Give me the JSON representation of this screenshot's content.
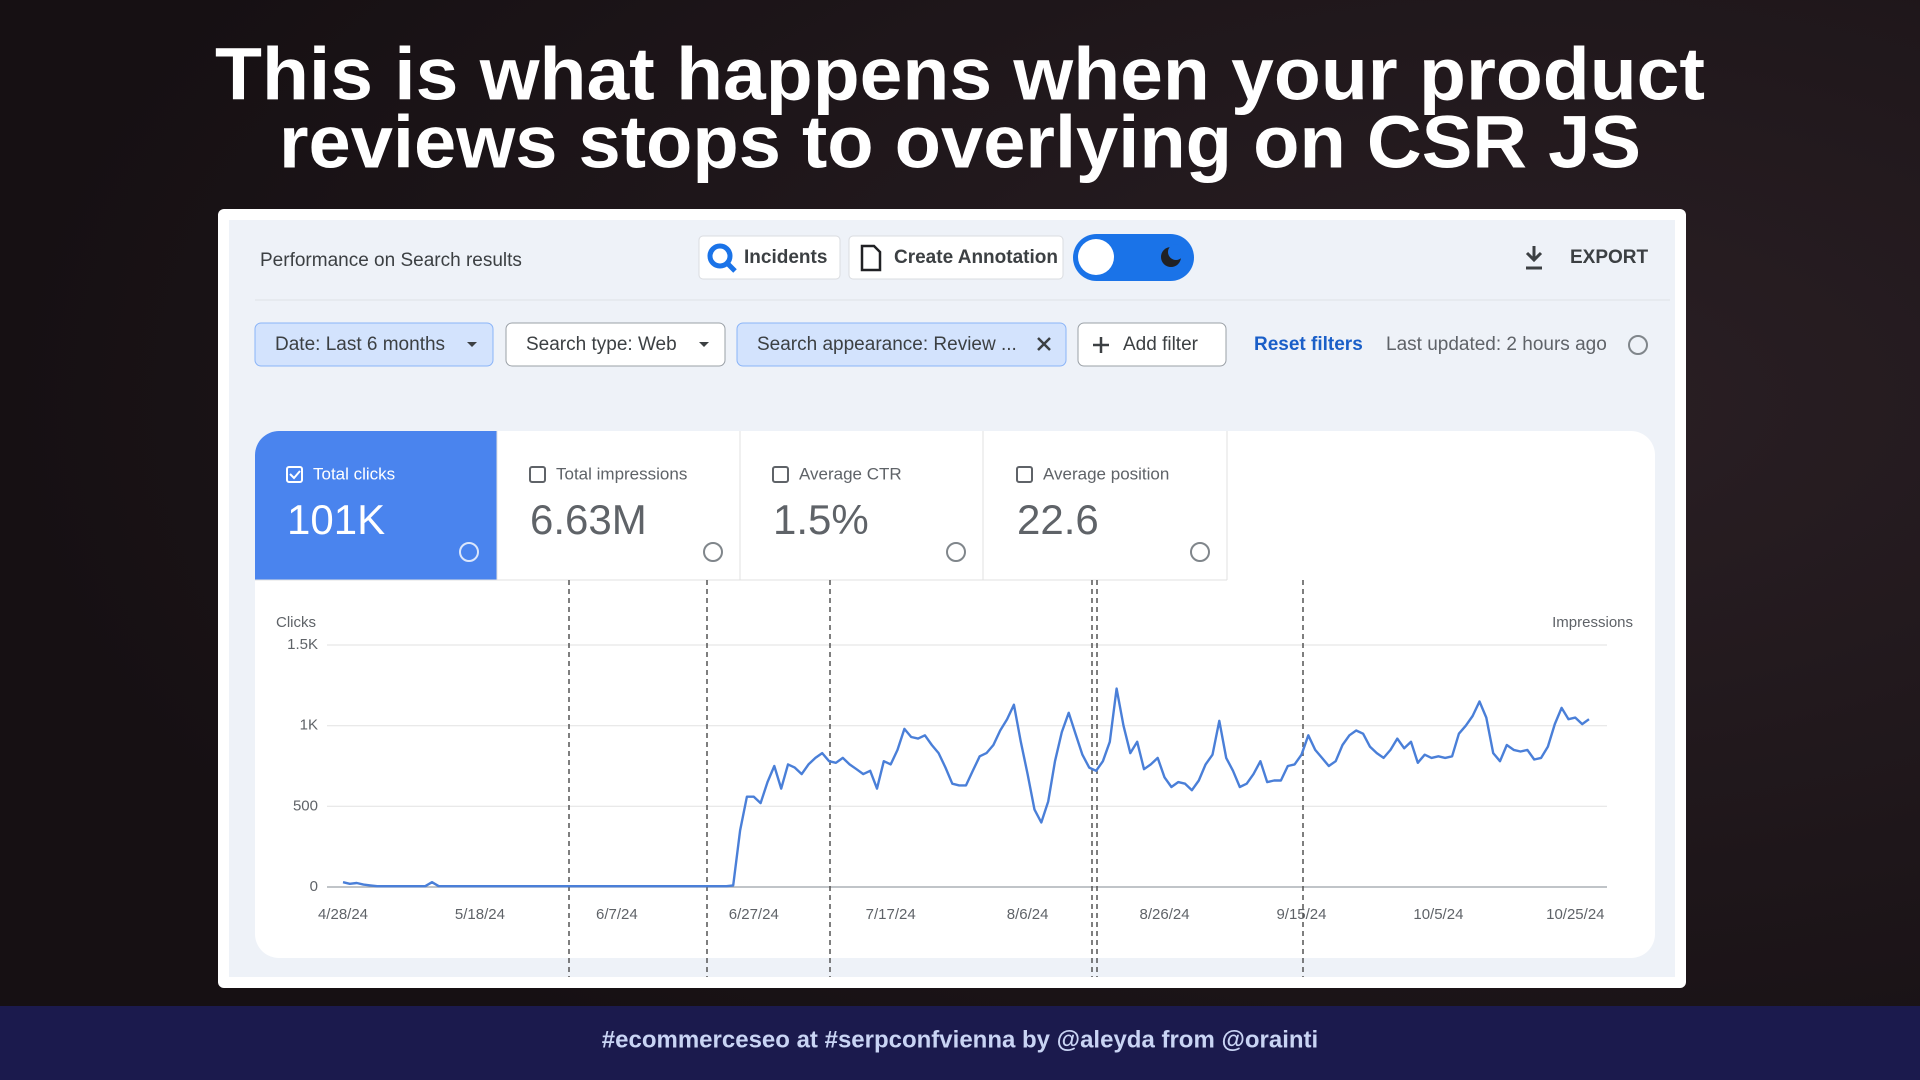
{
  "title_lines": [
    "This is what happens when your product",
    "reviews stops to overlying on CSR JS"
  ],
  "footer": "#ecommerceseo at #serpconfvienna by @aleyda from @orainti",
  "panel": {
    "heading": "Performance on Search results",
    "buttons": [
      "Incidents",
      "Create Annotation"
    ],
    "export": "EXPORT"
  },
  "filters": {
    "chips": [
      "Date: Last 6 months",
      "Search type: Web",
      "Search appearance: Review ...",
      "Add filter"
    ],
    "reset": "Reset filters",
    "updated": "Last updated: 2 hours ago"
  },
  "metrics": [
    {
      "label": "Total clicks",
      "value": "101K"
    },
    {
      "label": "Total impressions",
      "value": "6.63M"
    },
    {
      "label": "Average CTR",
      "value": "1.5%"
    },
    {
      "label": "Average position",
      "value": "22.6"
    }
  ],
  "chart_data": {
    "type": "line",
    "y_label": "Clicks",
    "y2_label": "Impressions",
    "color": "#4a7fd8",
    "ylim": [
      0,
      1500
    ],
    "yticks": [
      0,
      500,
      {
        "value": 1000,
        "label": "1K"
      },
      {
        "value": 1500,
        "label": "1.5K"
      }
    ],
    "grid": true,
    "categories": [
      "4/28/24",
      null,
      null,
      null,
      null,
      null,
      null,
      null,
      null,
      null,
      null,
      null,
      null,
      null,
      null,
      null,
      null,
      null,
      null,
      null,
      "5/18/24",
      null,
      null,
      null,
      null,
      null,
      null,
      null,
      null,
      null,
      null,
      null,
      null,
      null,
      null,
      null,
      null,
      null,
      null,
      null,
      "6/7/24",
      null,
      null,
      null,
      null,
      null,
      null,
      null,
      null,
      null,
      null,
      null,
      null,
      null,
      null,
      null,
      null,
      null,
      null,
      null,
      "6/27/24",
      null,
      null,
      null,
      null,
      null,
      null,
      null,
      null,
      null,
      null,
      null,
      null,
      null,
      null,
      null,
      null,
      null,
      null,
      null,
      "7/17/24",
      null,
      null,
      null,
      null,
      null,
      null,
      null,
      null,
      null,
      null,
      null,
      null,
      null,
      null,
      null,
      null,
      null,
      null,
      null,
      "8/6/24",
      null,
      null,
      null,
      null,
      null,
      null,
      null,
      null,
      null,
      null,
      null,
      null,
      null,
      null,
      null,
      null,
      null,
      null,
      null,
      "8/26/24",
      null,
      null,
      null,
      null,
      null,
      null,
      null,
      null,
      null,
      null,
      null,
      null,
      null,
      null,
      null,
      null,
      null,
      null,
      null,
      "9/15/24",
      null,
      null,
      null,
      null,
      null,
      null,
      null,
      null,
      null,
      null,
      null,
      null,
      null,
      null,
      null,
      null,
      null,
      null,
      null,
      "10/5/24",
      null,
      null,
      null,
      null,
      null,
      null,
      null,
      null,
      null,
      null,
      null,
      null,
      null,
      null,
      null,
      null,
      null,
      null,
      null,
      "10/25/24",
      null,
      null
    ],
    "values": [
      30,
      20,
      25,
      15,
      10,
      5,
      5,
      5,
      5,
      5,
      5,
      5,
      5,
      30,
      5,
      5,
      5,
      5,
      5,
      5,
      5,
      5,
      5,
      5,
      5,
      5,
      5,
      5,
      5,
      5,
      5,
      5,
      5,
      5,
      5,
      5,
      5,
      5,
      5,
      5,
      5,
      5,
      5,
      5,
      5,
      5,
      5,
      5,
      5,
      5,
      5,
      5,
      5,
      5,
      5,
      5,
      5,
      10,
      350,
      560,
      560,
      520,
      650,
      750,
      610,
      760,
      740,
      700,
      760,
      800,
      830,
      780,
      770,
      800,
      760,
      730,
      700,
      720,
      610,
      780,
      760,
      850,
      980,
      930,
      920,
      940,
      880,
      830,
      740,
      640,
      630,
      630,
      720,
      810,
      830,
      880,
      970,
      1040,
      1130,
      900,
      700,
      480,
      400,
      530,
      780,
      960,
      1080,
      950,
      820,
      740,
      720,
      780,
      900,
      1230,
      1000,
      830,
      900,
      730,
      760,
      800,
      680,
      620,
      650,
      640,
      600,
      660,
      760,
      820,
      1030,
      800,
      720,
      620,
      640,
      700,
      780,
      650,
      660,
      660,
      750,
      760,
      820,
      940,
      850,
      800,
      750,
      780,
      880,
      940,
      970,
      950,
      870,
      830,
      800,
      850,
      920,
      860,
      900,
      770,
      820,
      800,
      810,
      800,
      810,
      950,
      1000,
      1060,
      1150,
      1050,
      830,
      780,
      880,
      850,
      840,
      850,
      790,
      800,
      870,
      1010,
      1110,
      1040,
      1050,
      1010,
      1040
    ]
  }
}
